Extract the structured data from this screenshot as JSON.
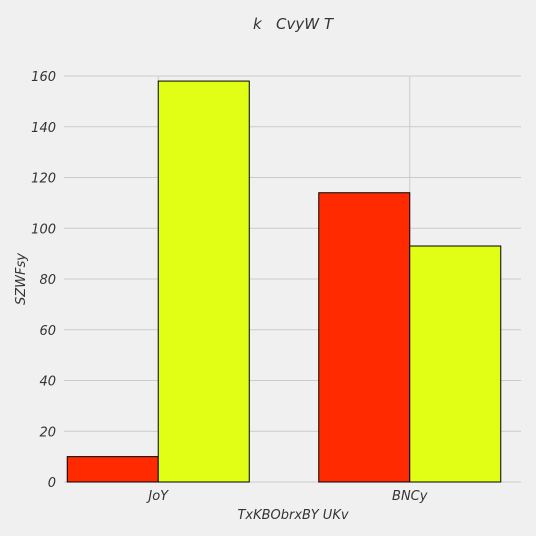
{
  "chart_data": {
    "type": "bar",
    "title": "k   CvyW T",
    "xlabel": "TxKBObrxBY UKv",
    "ylabel": "SZWFsy",
    "categories": [
      "JoY",
      "BNCy"
    ],
    "series": [
      {
        "values": [
          10,
          114
        ],
        "color": "#ff2a00"
      },
      {
        "values": [
          158,
          93
        ],
        "color": "#e1ff14"
      }
    ],
    "ylim": [
      0,
      160
    ],
    "yticks": [
      0,
      20,
      40,
      60,
      80,
      100,
      120,
      140,
      160
    ],
    "grid": true
  }
}
